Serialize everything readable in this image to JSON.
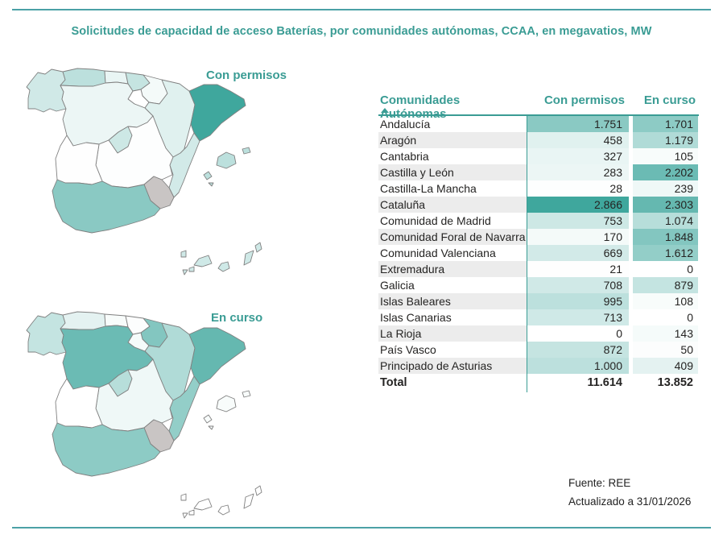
{
  "title": "Solicitudes de capacidad de acceso Baterías, por comunidades autónomas, CCAA, en megavatios, MW",
  "accent_color": "#3a9c94",
  "rule_color": "#4ba1a6",
  "maps": {
    "top_label": "Con permisos",
    "bottom_label": "En curso",
    "no_data_color": "#c9c5c4",
    "border_color": "#808080"
  },
  "table": {
    "header": {
      "region": "Comunidades Autónomas",
      "col1": "Con permisos",
      "col2": "En curso"
    },
    "sort_indicator": "ascending-triangle",
    "alt_row_color": "#ececec",
    "total_label": "Total"
  },
  "footer": {
    "source": "Fuente: REE",
    "updated": "Actualizado a 31/01/2026"
  },
  "chart_data": {
    "type": "heatmap",
    "subtype": "choropleth-maps-with-table",
    "title": "Solicitudes de capacidad de acceso Baterías, por comunidades autónomas, CCAA, en megavatios, MW",
    "unit": "MW",
    "categories": [
      "Andalucía",
      "Aragón",
      "Cantabria",
      "Castilla y León",
      "Castilla-La Mancha",
      "Cataluña",
      "Comunidad de Madrid",
      "Comunidad Foral de Navarra",
      "Comunidad Valenciana",
      "Extremadura",
      "Galicia",
      "Islas Baleares",
      "Islas Canarias",
      "La Rioja",
      "País Vasco",
      "Principado de Asturias"
    ],
    "series": [
      {
        "name": "Con permisos",
        "values": [
          1751,
          458,
          327,
          283,
          28,
          2866,
          753,
          170,
          669,
          21,
          708,
          995,
          713,
          0,
          872,
          1000
        ]
      },
      {
        "name": "En curso",
        "values": [
          1701,
          1179,
          105,
          2202,
          239,
          2303,
          1074,
          1848,
          1612,
          0,
          879,
          108,
          0,
          143,
          50,
          409
        ]
      }
    ],
    "totals": [
      11614,
      13852
    ],
    "number_format": "es-ES (dot thousands separator)",
    "color_scale": {
      "min": 0,
      "max": 2866,
      "min_color": "#ffffff",
      "max_color": "#3fa79d"
    },
    "no_data_regions": [
      "Región de Murcia"
    ],
    "legend_position": "none",
    "grid": false
  }
}
